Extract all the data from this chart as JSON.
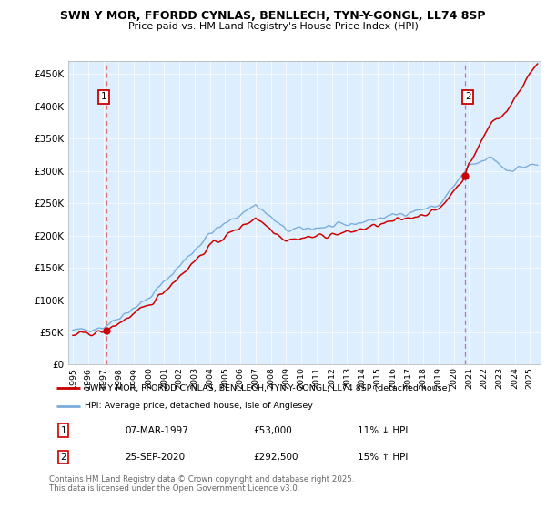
{
  "title": "SWN Y MOR, FFORDD CYNLAS, BENLLECH, TYN-Y-GONGL, LL74 8SP",
  "subtitle": "Price paid vs. HM Land Registry's House Price Index (HPI)",
  "legend_line1": "SWN Y MOR, FFORDD CYNLAS, BENLLECH, TYN-Y-GONGL, LL74 8SP (detached house)",
  "legend_line2": "HPI: Average price, detached house, Isle of Anglesey",
  "footer": "Contains HM Land Registry data © Crown copyright and database right 2025.\nThis data is licensed under the Open Government Licence v3.0.",
  "annotation1_date": "07-MAR-1997",
  "annotation1_price": "£53,000",
  "annotation1_hpi": "11% ↓ HPI",
  "annotation2_date": "25-SEP-2020",
  "annotation2_price": "£292,500",
  "annotation2_hpi": "15% ↑ HPI",
  "price_color": "#cc0000",
  "hpi_color": "#7aaddb",
  "plot_bg_color": "#ddeeff",
  "ylim": [
    0,
    470000
  ],
  "yticks": [
    0,
    50000,
    100000,
    150000,
    200000,
    250000,
    300000,
    350000,
    400000,
    450000
  ],
  "yticklabels": [
    "£0",
    "£50K",
    "£100K",
    "£150K",
    "£200K",
    "£250K",
    "£300K",
    "£350K",
    "£400K",
    "£450K"
  ],
  "xlim_start": 1994.7,
  "xlim_end": 2025.7,
  "xticks": [
    1995,
    1996,
    1997,
    1998,
    1999,
    2000,
    2001,
    2002,
    2003,
    2004,
    2005,
    2006,
    2007,
    2008,
    2009,
    2010,
    2011,
    2012,
    2013,
    2014,
    2015,
    2016,
    2017,
    2018,
    2019,
    2020,
    2021,
    2022,
    2023,
    2024,
    2025
  ],
  "sale1_x": 1997.18,
  "sale1_y": 53000,
  "sale2_x": 2020.73,
  "sale2_y": 292500
}
